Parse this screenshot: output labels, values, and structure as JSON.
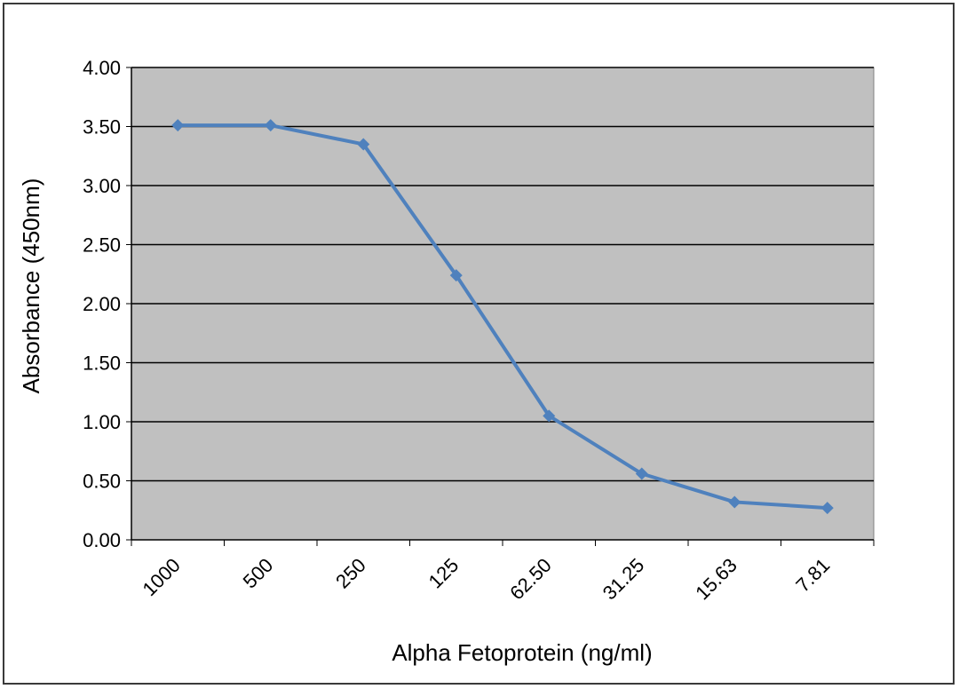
{
  "chart_data": {
    "type": "line",
    "title": "",
    "xlabel": "Alpha Fetoprotein (ng/ml)",
    "ylabel": "Absorbance (450nm)",
    "categories": [
      "1000",
      "500",
      "250",
      "125",
      "62.50",
      "31.25",
      "15.63",
      "7.81"
    ],
    "series": [
      {
        "values": [
          3.51,
          3.51,
          3.35,
          2.24,
          1.05,
          0.56,
          0.32,
          0.27
        ]
      }
    ],
    "ylim": [
      0,
      4
    ],
    "yticks": [
      "0.00",
      "0.50",
      "1.00",
      "1.50",
      "2.00",
      "2.50",
      "3.00",
      "3.50",
      "4.00"
    ],
    "grid": true,
    "legend": "none",
    "colors": {
      "line": "#4f81bd",
      "plot_background": "#c0c0c0",
      "gridline": "#000000"
    }
  }
}
